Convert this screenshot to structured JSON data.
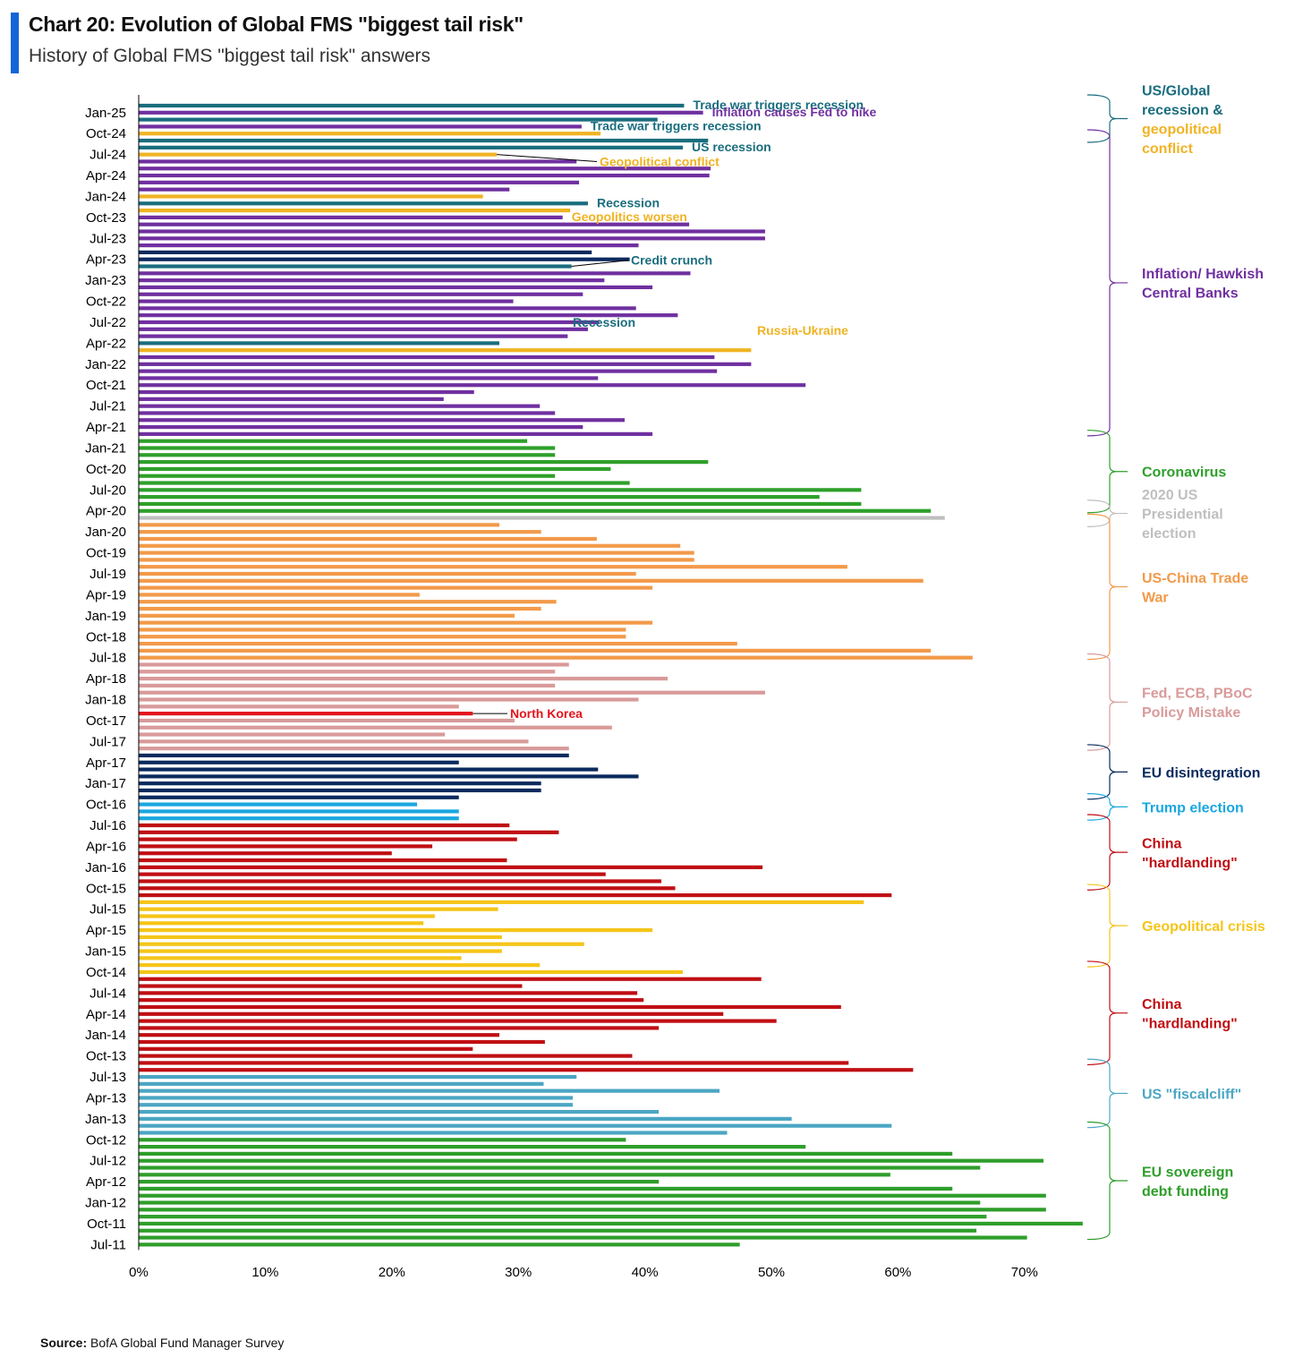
{
  "header": {
    "title": "Chart 20: Evolution of Global FMS \"biggest tail risk\"",
    "subtitle": "History of Global FMS \"biggest tail risk\" answers",
    "accent_color": "#1565d8"
  },
  "footer": {
    "source_label": "Source:",
    "source_text": "BofA Global Fund Manager Survey"
  },
  "chart_data": {
    "type": "bar",
    "orientation": "horizontal",
    "title": "Chart 20: Evolution of Global FMS \"biggest tail risk\"",
    "subtitle": "History of Global FMS \"biggest tail risk\" answers",
    "xlim": [
      0,
      75
    ],
    "xticks": [
      "0%",
      "10%",
      "20%",
      "30%",
      "40%",
      "50%",
      "60%",
      "70%"
    ],
    "xtick_values": [
      0,
      10,
      20,
      30,
      40,
      50,
      60,
      70
    ],
    "grid": false,
    "legend": "none (bracketed group labels on the right)",
    "y_tick_labels": [
      "Jan-25",
      "Oct-24",
      "Jul-24",
      "Apr-24",
      "Jan-24",
      "Oct-23",
      "Jul-23",
      "Apr-23",
      "Jan-23",
      "Oct-22",
      "Jul-22",
      "Apr-22",
      "Jan-22",
      "Oct-21",
      "Jul-21",
      "Apr-21",
      "Jan-21",
      "Oct-20",
      "Jul-20",
      "Apr-20",
      "Jan-20",
      "Oct-19",
      "Jul-19",
      "Apr-19",
      "Jan-19",
      "Oct-18",
      "Jul-18",
      "Apr-18",
      "Jan-18",
      "Oct-17",
      "Jul-17",
      "Apr-17",
      "Jan-17",
      "Oct-16",
      "Jul-16",
      "Apr-16",
      "Jan-16",
      "Oct-15",
      "Jul-15",
      "Apr-15",
      "Jan-15",
      "Oct-14",
      "Jul-14",
      "Apr-14",
      "Jan-14",
      "Oct-13",
      "Jul-13",
      "Apr-13",
      "Jan-13",
      "Oct-12",
      "Jul-12",
      "Apr-12",
      "Jan-12",
      "Oct-11",
      "Jul-11"
    ],
    "colors": {
      "teal": "#1a6d7e",
      "purple": "#7030a0",
      "gold": "#f0b323",
      "navy": "#0b2a5e",
      "green_corona": "#2ea02a",
      "grey": "#bfbfbf",
      "orange": "#f29a4a",
      "pink": "#d99a9a",
      "red_nk": "#e3141c",
      "lightblue": "#1aa7e0",
      "red_china": "#c00f14",
      "yellow": "#f5c518",
      "steel": "#4ba6c4",
      "green_eu": "#2e9e2a"
    },
    "bars": [
      {
        "c": "teal",
        "v": 43.1
      },
      {
        "c": "purple",
        "v": 44.6
      },
      {
        "c": "teal",
        "v": 41.0
      },
      {
        "c": "purple",
        "v": 35.0
      },
      {
        "c": "gold",
        "v": 36.5
      },
      {
        "c": "teal",
        "v": 45.0
      },
      {
        "c": "teal",
        "v": 43.0
      },
      {
        "c": "gold",
        "v": 28.3
      },
      {
        "c": "purple",
        "v": 34.6
      },
      {
        "c": "purple",
        "v": 45.2
      },
      {
        "c": "purple",
        "v": 45.1
      },
      {
        "c": "purple",
        "v": 34.8
      },
      {
        "c": "purple",
        "v": 29.3
      },
      {
        "c": "gold",
        "v": 27.2
      },
      {
        "c": "teal",
        "v": 35.5
      },
      {
        "c": "gold",
        "v": 34.1
      },
      {
        "c": "purple",
        "v": 33.5
      },
      {
        "c": "purple",
        "v": 43.5
      },
      {
        "c": "purple",
        "v": 49.5
      },
      {
        "c": "purple",
        "v": 49.5
      },
      {
        "c": "purple",
        "v": 39.5
      },
      {
        "c": "navy",
        "v": 35.8
      },
      {
        "c": "navy",
        "v": 38.8
      },
      {
        "c": "teal",
        "v": 34.2
      },
      {
        "c": "purple",
        "v": 43.6
      },
      {
        "c": "purple",
        "v": 36.8
      },
      {
        "c": "purple",
        "v": 40.6
      },
      {
        "c": "purple",
        "v": 35.1
      },
      {
        "c": "purple",
        "v": 29.6
      },
      {
        "c": "purple",
        "v": 39.3
      },
      {
        "c": "purple",
        "v": 42.6
      },
      {
        "c": "purple",
        "v": 36.4
      },
      {
        "c": "purple",
        "v": 35.5
      },
      {
        "c": "purple",
        "v": 33.9
      },
      {
        "c": "teal",
        "v": 28.5
      },
      {
        "c": "gold",
        "v": 48.4
      },
      {
        "c": "purple",
        "v": 45.5
      },
      {
        "c": "purple",
        "v": 48.4
      },
      {
        "c": "purple",
        "v": 45.7
      },
      {
        "c": "purple",
        "v": 36.3
      },
      {
        "c": "purple",
        "v": 52.7
      },
      {
        "c": "purple",
        "v": 26.5
      },
      {
        "c": "purple",
        "v": 24.1
      },
      {
        "c": "purple",
        "v": 31.7
      },
      {
        "c": "purple",
        "v": 32.9
      },
      {
        "c": "purple",
        "v": 38.4
      },
      {
        "c": "purple",
        "v": 35.1
      },
      {
        "c": "purple",
        "v": 40.6
      },
      {
        "c": "green_corona",
        "v": 30.7
      },
      {
        "c": "green_corona",
        "v": 32.9
      },
      {
        "c": "green_corona",
        "v": 32.9
      },
      {
        "c": "green_corona",
        "v": 45.0
      },
      {
        "c": "green_corona",
        "v": 37.3
      },
      {
        "c": "green_corona",
        "v": 32.9
      },
      {
        "c": "green_corona",
        "v": 38.8
      },
      {
        "c": "green_corona",
        "v": 57.1
      },
      {
        "c": "green_corona",
        "v": 53.8
      },
      {
        "c": "green_corona",
        "v": 57.1
      },
      {
        "c": "green_corona",
        "v": 62.6
      },
      {
        "c": "grey",
        "v": 63.7
      },
      {
        "c": "orange",
        "v": 28.5
      },
      {
        "c": "orange",
        "v": 31.8
      },
      {
        "c": "orange",
        "v": 36.2
      },
      {
        "c": "orange",
        "v": 42.8
      },
      {
        "c": "orange",
        "v": 43.9
      },
      {
        "c": "orange",
        "v": 43.9
      },
      {
        "c": "orange",
        "v": 56.0
      },
      {
        "c": "orange",
        "v": 39.3
      },
      {
        "c": "orange",
        "v": 62.0
      },
      {
        "c": "orange",
        "v": 40.6
      },
      {
        "c": "orange",
        "v": 22.2
      },
      {
        "c": "orange",
        "v": 33.0
      },
      {
        "c": "orange",
        "v": 31.8
      },
      {
        "c": "orange",
        "v": 29.7
      },
      {
        "c": "orange",
        "v": 40.6
      },
      {
        "c": "orange",
        "v": 38.5
      },
      {
        "c": "orange",
        "v": 38.5
      },
      {
        "c": "orange",
        "v": 47.3
      },
      {
        "c": "orange",
        "v": 62.6
      },
      {
        "c": "orange",
        "v": 65.9
      },
      {
        "c": "pink",
        "v": 34.0
      },
      {
        "c": "pink",
        "v": 32.9
      },
      {
        "c": "pink",
        "v": 41.8
      },
      {
        "c": "pink",
        "v": 32.9
      },
      {
        "c": "pink",
        "v": 49.5
      },
      {
        "c": "pink",
        "v": 39.5
      },
      {
        "c": "pink",
        "v": 25.3
      },
      {
        "c": "red_nk",
        "v": 26.4
      },
      {
        "c": "pink",
        "v": 29.7
      },
      {
        "c": "pink",
        "v": 37.4
      },
      {
        "c": "pink",
        "v": 24.2
      },
      {
        "c": "pink",
        "v": 30.8
      },
      {
        "c": "pink",
        "v": 34.0
      },
      {
        "c": "navy",
        "v": 34.0
      },
      {
        "c": "navy",
        "v": 25.3
      },
      {
        "c": "navy",
        "v": 36.3
      },
      {
        "c": "navy",
        "v": 39.5
      },
      {
        "c": "navy",
        "v": 31.8
      },
      {
        "c": "navy",
        "v": 31.8
      },
      {
        "c": "navy",
        "v": 25.3
      },
      {
        "c": "lightblue",
        "v": 22.0
      },
      {
        "c": "lightblue",
        "v": 25.3
      },
      {
        "c": "lightblue",
        "v": 25.3
      },
      {
        "c": "red_china",
        "v": 29.3
      },
      {
        "c": "red_china",
        "v": 33.2
      },
      {
        "c": "red_china",
        "v": 29.9
      },
      {
        "c": "red_china",
        "v": 23.2
      },
      {
        "c": "red_china",
        "v": 20.0
      },
      {
        "c": "red_china",
        "v": 29.1
      },
      {
        "c": "red_china",
        "v": 49.3
      },
      {
        "c": "red_china",
        "v": 36.9
      },
      {
        "c": "red_china",
        "v": 41.3
      },
      {
        "c": "red_china",
        "v": 42.4
      },
      {
        "c": "red_china",
        "v": 59.5
      },
      {
        "c": "yellow",
        "v": 57.3
      },
      {
        "c": "yellow",
        "v": 28.4
      },
      {
        "c": "yellow",
        "v": 23.4
      },
      {
        "c": "yellow",
        "v": 22.5
      },
      {
        "c": "yellow",
        "v": 40.6
      },
      {
        "c": "yellow",
        "v": 28.7
      },
      {
        "c": "yellow",
        "v": 35.2
      },
      {
        "c": "yellow",
        "v": 28.7
      },
      {
        "c": "yellow",
        "v": 25.5
      },
      {
        "c": "yellow",
        "v": 31.7
      },
      {
        "c": "yellow",
        "v": 43.0
      },
      {
        "c": "red_china",
        "v": 49.2
      },
      {
        "c": "red_china",
        "v": 30.3
      },
      {
        "c": "red_china",
        "v": 39.4
      },
      {
        "c": "red_china",
        "v": 39.9
      },
      {
        "c": "red_china",
        "v": 55.5
      },
      {
        "c": "red_china",
        "v": 46.2
      },
      {
        "c": "red_china",
        "v": 50.4
      },
      {
        "c": "red_china",
        "v": 41.1
      },
      {
        "c": "red_china",
        "v": 28.5
      },
      {
        "c": "red_china",
        "v": 32.1
      },
      {
        "c": "red_china",
        "v": 26.4
      },
      {
        "c": "red_china",
        "v": 39.0
      },
      {
        "c": "red_china",
        "v": 56.1
      },
      {
        "c": "red_china",
        "v": 61.2
      },
      {
        "c": "steel",
        "v": 34.6
      },
      {
        "c": "steel",
        "v": 32.0
      },
      {
        "c": "steel",
        "v": 45.9
      },
      {
        "c": "steel",
        "v": 34.3
      },
      {
        "c": "steel",
        "v": 34.3
      },
      {
        "c": "steel",
        "v": 41.1
      },
      {
        "c": "steel",
        "v": 51.6
      },
      {
        "c": "steel",
        "v": 59.5
      },
      {
        "c": "steel",
        "v": 46.5
      },
      {
        "c": "green_eu",
        "v": 38.5
      },
      {
        "c": "green_eu",
        "v": 52.7
      },
      {
        "c": "green_eu",
        "v": 64.3
      },
      {
        "c": "green_eu",
        "v": 71.5
      },
      {
        "c": "green_eu",
        "v": 66.5
      },
      {
        "c": "green_eu",
        "v": 59.4
      },
      {
        "c": "green_eu",
        "v": 41.1
      },
      {
        "c": "green_eu",
        "v": 64.3
      },
      {
        "c": "green_eu",
        "v": 71.7
      },
      {
        "c": "green_eu",
        "v": 66.5
      },
      {
        "c": "green_eu",
        "v": 71.7
      },
      {
        "c": "green_eu",
        "v": 67.0
      },
      {
        "c": "green_eu",
        "v": 74.6
      },
      {
        "c": "green_eu",
        "v": 66.2
      },
      {
        "c": "green_eu",
        "v": 70.2
      },
      {
        "c": "green_eu",
        "v": 47.5
      }
    ],
    "annotations": [
      {
        "text": "Trade war triggers recession",
        "c": "teal",
        "bar": 0
      },
      {
        "text": "Inflation causes Fed to hike",
        "c": "purple",
        "bar": 1
      },
      {
        "text": "Trade war triggers recession",
        "c": "teal",
        "bar": 3
      },
      {
        "text": "US recession",
        "c": "teal",
        "bar": 6
      },
      {
        "text": "Geopolitical conflict",
        "c": "gold",
        "bar": 8,
        "leader_bar": 7
      },
      {
        "text": "Recession",
        "c": "teal",
        "bar": 14
      },
      {
        "text": "Geopolitics worsen",
        "c": "gold",
        "bar": 16
      },
      {
        "text": "Credit crunch",
        "c": "teal",
        "bar": 22,
        "leader_bar": 23
      },
      {
        "text": "Recession",
        "c": "teal",
        "bar": 31
      },
      {
        "text": "Russia-Ukraine",
        "c": "gold",
        "bar": 32
      },
      {
        "text": "North Korea",
        "c": "red_nk",
        "bar": 87,
        "leader_bar": 87
      }
    ],
    "groups": [
      {
        "label": "US/Global\nrecession &\ngeopolitical\nconflict",
        "c": "teal",
        "start": 0,
        "end": 5,
        "lines": [
          {
            "text": "US/Global",
            "c": "teal"
          },
          {
            "text": "recession &",
            "c": "teal"
          },
          {
            "text": "geopolitical",
            "c": "gold"
          },
          {
            "text": "conflict",
            "c": "gold"
          }
        ]
      },
      {
        "label": "Inflation/ Hawkish\nCentral Banks",
        "c": "purple",
        "start": 5,
        "end": 47,
        "lines": [
          {
            "text": "Inflation/ Hawkish",
            "c": "purple"
          },
          {
            "text": "Central Banks",
            "c": "purple"
          }
        ]
      },
      {
        "label": "Coronavirus",
        "c": "green_corona",
        "start": 48,
        "end": 58,
        "lines": [
          {
            "text": "Coronavirus",
            "c": "green_corona"
          }
        ]
      },
      {
        "label": "2020 US\nPresidential\nelection",
        "c": "grey",
        "start": 58,
        "end": 60,
        "lines": [
          {
            "text": "2020 US",
            "c": "grey"
          },
          {
            "text": "Presidential",
            "c": "grey"
          },
          {
            "text": "election",
            "c": "grey"
          }
        ]
      },
      {
        "label": "US-China Trade\nWar",
        "c": "orange",
        "start": 60,
        "end": 79,
        "lines": [
          {
            "text": "US-China Trade",
            "c": "orange"
          },
          {
            "text": "War",
            "c": "orange"
          }
        ]
      },
      {
        "label": "Fed, ECB, PBoC\nPolicy Mistake",
        "c": "pink",
        "start": 80,
        "end": 92,
        "lines": [
          {
            "text": "Fed, ECB, PBoC",
            "c": "pink"
          },
          {
            "text": "Policy Mistake",
            "c": "pink"
          }
        ]
      },
      {
        "label": "EU disintegration",
        "c": "navy",
        "start": 93,
        "end": 99,
        "lines": [
          {
            "text": "EU disintegration",
            "c": "navy"
          }
        ]
      },
      {
        "label": "Trump election",
        "c": "lightblue",
        "start": 100,
        "end": 102,
        "lines": [
          {
            "text": "Trump election",
            "c": "lightblue"
          }
        ]
      },
      {
        "label": "China\n\"hardlanding\"",
        "c": "red_china",
        "start": 103,
        "end": 112,
        "lines": [
          {
            "text": "China",
            "c": "red_china"
          },
          {
            "text": "\"hardlanding\"",
            "c": "red_china"
          }
        ]
      },
      {
        "label": "Geopolitical crisis",
        "c": "yellow",
        "start": 113,
        "end": 123,
        "lines": [
          {
            "text": "Geopolitical crisis",
            "c": "yellow"
          }
        ]
      },
      {
        "label": "China\n\"hardlanding\"",
        "c": "red_china",
        "start": 124,
        "end": 137,
        "lines": [
          {
            "text": "China",
            "c": "red_china"
          },
          {
            "text": "\"hardlanding\"",
            "c": "red_china"
          }
        ]
      },
      {
        "label": "US \"fiscalcliff\"",
        "c": "steel",
        "start": 138,
        "end": 146,
        "lines": [
          {
            "text": "US \"fiscalcliff\"",
            "c": "steel"
          }
        ]
      },
      {
        "label": "EU sovereign\ndebt funding",
        "c": "green_eu",
        "start": 147,
        "end": 162,
        "lines": [
          {
            "text": "EU sovereign",
            "c": "green_eu"
          },
          {
            "text": "debt funding",
            "c": "green_eu"
          }
        ]
      }
    ]
  }
}
